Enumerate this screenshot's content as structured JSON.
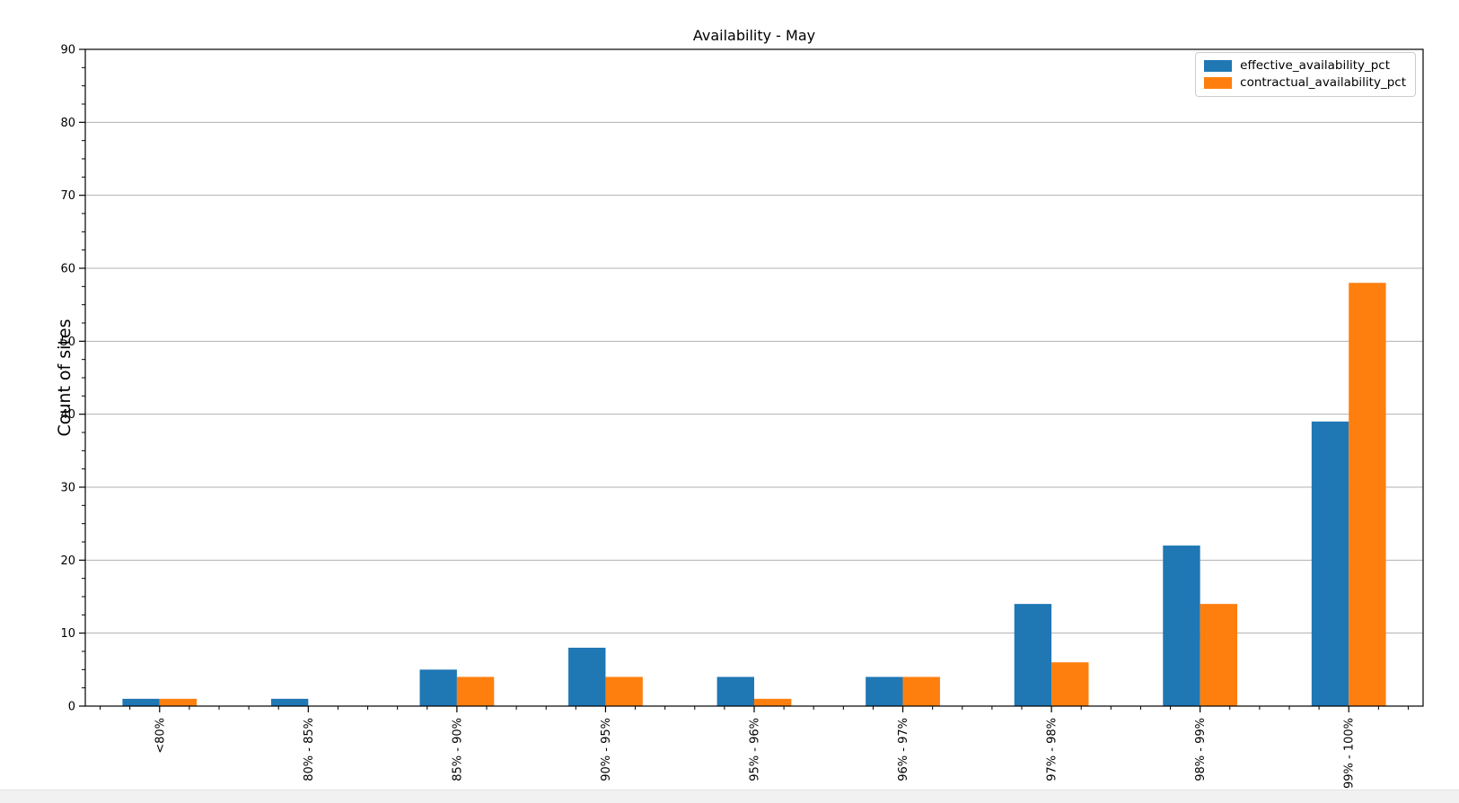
{
  "page": {
    "title": "Availability - May"
  },
  "chart_data": {
    "type": "bar",
    "title": "Availability - May",
    "xlabel": "",
    "ylabel": "Count of sites",
    "categories": [
      "<80%",
      "80% - 85%",
      "85% - 90%",
      "90% - 95%",
      "95% - 96%",
      "96% - 97%",
      "97% - 98%",
      "98% - 99%",
      "99% - 100%"
    ],
    "series": [
      {
        "name": "effective_availability_pct",
        "color": "#1f77b4",
        "values": [
          1,
          1,
          5,
          8,
          4,
          4,
          14,
          22,
          39
        ]
      },
      {
        "name": "contractual_availability_pct",
        "color": "#ff7f0e",
        "values": [
          1,
          0,
          4,
          4,
          1,
          4,
          6,
          14,
          58
        ]
      }
    ],
    "ylim": [
      0,
      90
    ],
    "y_ticks": [
      0,
      10,
      20,
      30,
      40,
      50,
      60,
      70,
      80,
      90
    ],
    "y_minor_tick_step": 2.5,
    "x_minor_subdivisions": 5,
    "grid": "horizontal-major",
    "grid_color": "#b0b0b0",
    "axis_color": "#000000",
    "legend_position": "upper right",
    "x_tick_label_rotation": 90
  },
  "scrollbar": {
    "orientation": "horizontal"
  }
}
